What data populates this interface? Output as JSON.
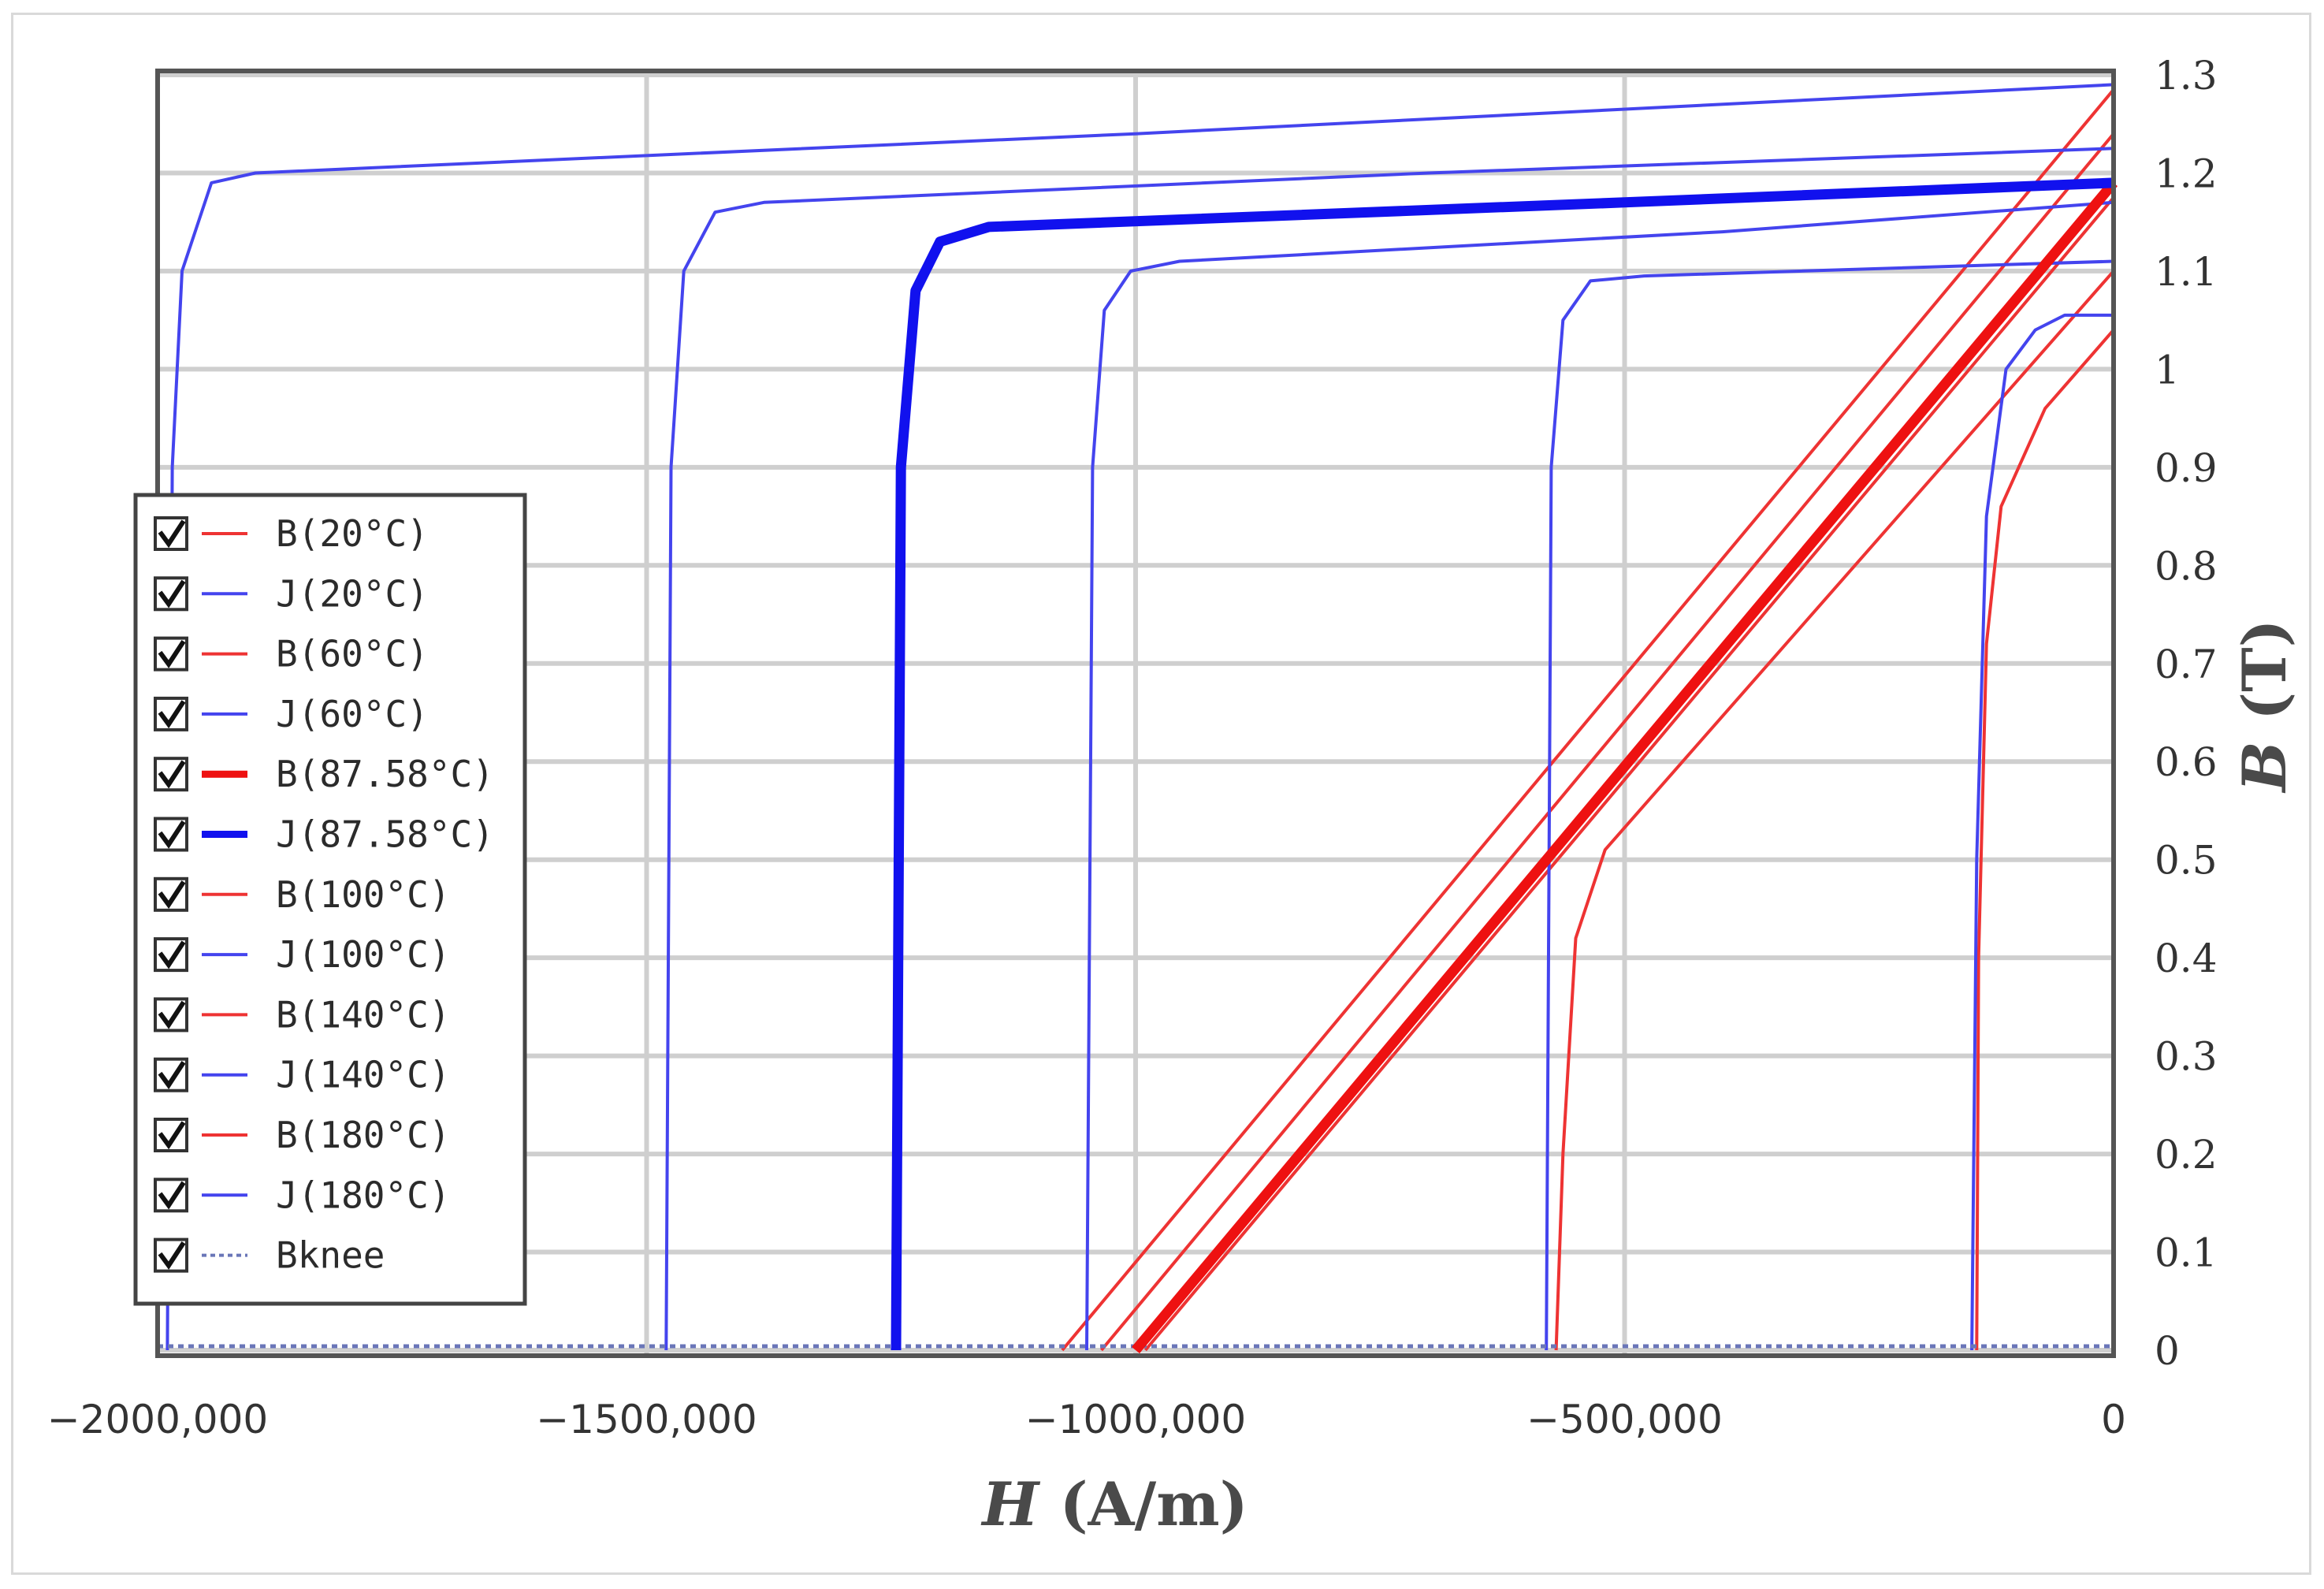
{
  "chart_data": {
    "type": "line",
    "title": "",
    "xlabel": "H (A/m)",
    "xlabel_var": "H",
    "xlabel_unit": " (A/m)",
    "ylabel": "B (T)",
    "ylabel_var": "B",
    "ylabel_unit": " (T)",
    "xlim": [
      -2000000,
      0
    ],
    "ylim": [
      0,
      1.3
    ],
    "xticks": [
      {
        "value": -2000000,
        "label": "−2000,000"
      },
      {
        "value": -1500000,
        "label": "−1500,000"
      },
      {
        "value": -1000000,
        "label": "−1000,000"
      },
      {
        "value": -500000,
        "label": "−500,000"
      },
      {
        "value": 0,
        "label": "0"
      }
    ],
    "yticks": [
      {
        "value": 0,
        "label": "0"
      },
      {
        "value": 0.1,
        "label": "0.1"
      },
      {
        "value": 0.2,
        "label": "0.2"
      },
      {
        "value": 0.3,
        "label": "0.3"
      },
      {
        "value": 0.4,
        "label": "0.4"
      },
      {
        "value": 0.5,
        "label": "0.5"
      },
      {
        "value": 0.6,
        "label": "0.6"
      },
      {
        "value": 0.7,
        "label": "0.7"
      },
      {
        "value": 0.8,
        "label": "0.8"
      },
      {
        "value": 0.9,
        "label": "0.9"
      },
      {
        "value": 1.0,
        "label": "1"
      },
      {
        "value": 1.1,
        "label": "1.1"
      },
      {
        "value": 1.2,
        "label": "1.2"
      },
      {
        "value": 1.3,
        "label": "1.3"
      }
    ],
    "grid": true,
    "legend_position": "left",
    "series": [
      {
        "name": "B(20°C)",
        "kind": "B",
        "color": "#ee3333",
        "thick": false,
        "points": [
          [
            -1075000,
            0
          ],
          [
            0,
            1.285
          ]
        ]
      },
      {
        "name": "J(20°C)",
        "kind": "J",
        "color": "#4444ee",
        "thick": false,
        "points": [
          [
            -1990000,
            0
          ],
          [
            -1985000,
            0.9
          ],
          [
            -1975000,
            1.1
          ],
          [
            -1945000,
            1.19
          ],
          [
            -1900000,
            1.2
          ],
          [
            -1000000,
            1.24
          ],
          [
            0,
            1.29
          ]
        ]
      },
      {
        "name": "B(60°C)",
        "kind": "B",
        "color": "#ee3333",
        "thick": false,
        "points": [
          [
            -1035000,
            0
          ],
          [
            0,
            1.24
          ]
        ]
      },
      {
        "name": "J(60°C)",
        "kind": "J",
        "color": "#4444ee",
        "thick": false,
        "points": [
          [
            -1480000,
            0
          ],
          [
            -1475000,
            0.9
          ],
          [
            -1462000,
            1.1
          ],
          [
            -1430000,
            1.16
          ],
          [
            -1380000,
            1.17
          ],
          [
            -700000,
            1.2
          ],
          [
            0,
            1.225
          ]
        ]
      },
      {
        "name": "B(87.58°C)",
        "kind": "B",
        "color": "#ee1111",
        "thick": true,
        "points": [
          [
            -1000000,
            0
          ],
          [
            0,
            1.19
          ]
        ]
      },
      {
        "name": "J(87.58°C)",
        "kind": "J",
        "color": "#1111ee",
        "thick": true,
        "points": [
          [
            -1245000,
            0
          ],
          [
            -1240000,
            0.9
          ],
          [
            -1225000,
            1.08
          ],
          [
            -1200000,
            1.13
          ],
          [
            -1150000,
            1.145
          ],
          [
            -500000,
            1.17
          ],
          [
            0,
            1.19
          ]
        ]
      },
      {
        "name": "B(100°C)",
        "kind": "B",
        "color": "#ee3333",
        "thick": false,
        "points": [
          [
            -990000,
            0
          ],
          [
            0,
            1.175
          ]
        ]
      },
      {
        "name": "J(100°C)",
        "kind": "J",
        "color": "#4444ee",
        "thick": false,
        "points": [
          [
            -1050000,
            0
          ],
          [
            -1044000,
            0.9
          ],
          [
            -1032000,
            1.06
          ],
          [
            -1005000,
            1.1
          ],
          [
            -955000,
            1.11
          ],
          [
            -400000,
            1.14
          ],
          [
            0,
            1.17
          ]
        ]
      },
      {
        "name": "B(140°C)",
        "kind": "B",
        "color": "#ee3333",
        "thick": false,
        "points": [
          [
            -570000,
            0
          ],
          [
            -563000,
            0.2
          ],
          [
            -550000,
            0.42
          ],
          [
            -520000,
            0.51
          ],
          [
            0,
            1.1
          ]
        ]
      },
      {
        "name": "J(140°C)",
        "kind": "J",
        "color": "#4444ee",
        "thick": false,
        "points": [
          [
            -580000,
            0
          ],
          [
            -575000,
            0.9
          ],
          [
            -563000,
            1.05
          ],
          [
            -535000,
            1.09
          ],
          [
            -480000,
            1.095
          ],
          [
            0,
            1.11
          ]
        ]
      },
      {
        "name": "B(180°C)",
        "kind": "B",
        "color": "#ee3333",
        "thick": false,
        "points": [
          [
            -140000,
            0
          ],
          [
            -138000,
            0.4
          ],
          [
            -130000,
            0.72
          ],
          [
            -115000,
            0.86
          ],
          [
            -70000,
            0.96
          ],
          [
            0,
            1.04
          ]
        ]
      },
      {
        "name": "J(180°C)",
        "kind": "J",
        "color": "#4444ee",
        "thick": false,
        "points": [
          [
            -145000,
            0
          ],
          [
            -140000,
            0.5
          ],
          [
            -130000,
            0.85
          ],
          [
            -110000,
            1.0
          ],
          [
            -80000,
            1.04
          ],
          [
            -50000,
            1.055
          ],
          [
            0,
            1.055
          ]
        ]
      },
      {
        "name": "Bknee",
        "kind": "knee",
        "color": "#6a76b8",
        "thick": false,
        "points": [
          [
            -2000000,
            0.004
          ],
          [
            0,
            0.004
          ]
        ]
      }
    ]
  }
}
